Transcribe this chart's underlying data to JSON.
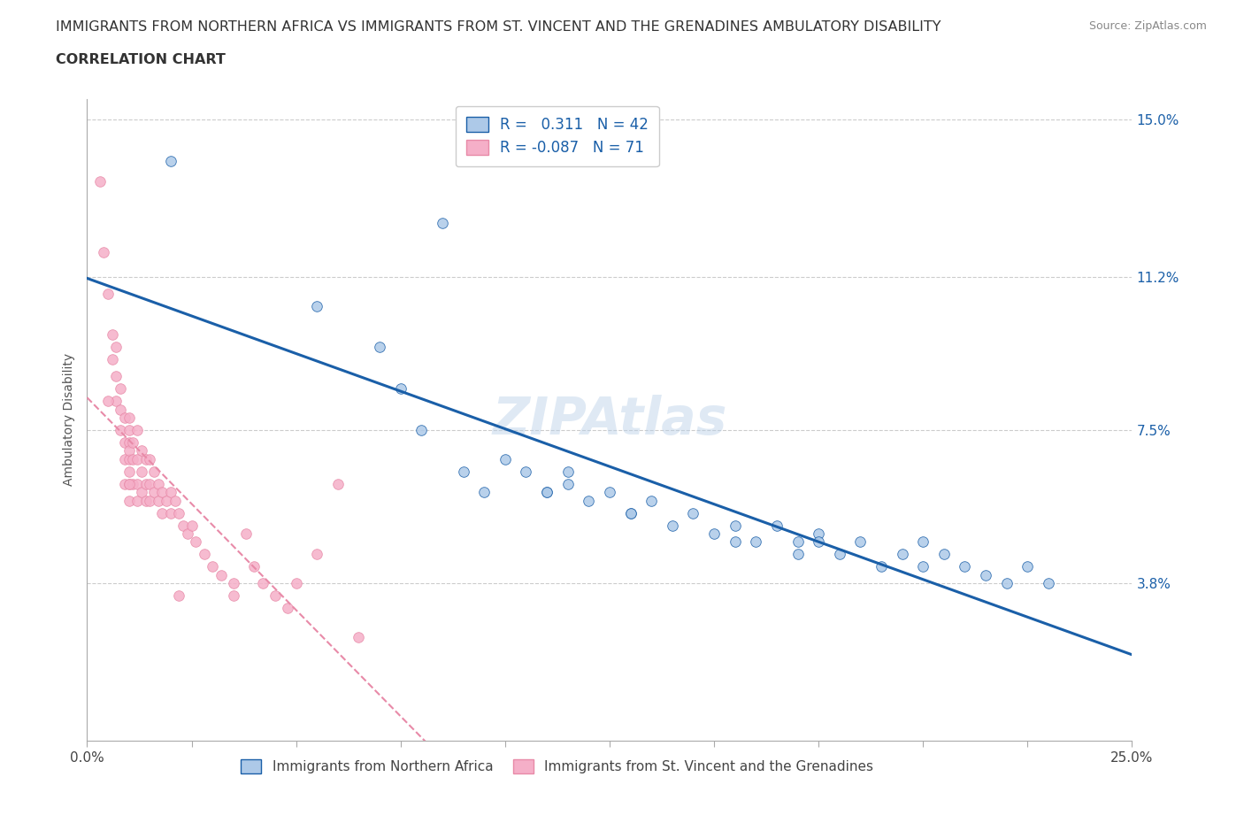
{
  "title_line1": "IMMIGRANTS FROM NORTHERN AFRICA VS IMMIGRANTS FROM ST. VINCENT AND THE GRENADINES AMBULATORY DISABILITY",
  "title_line2": "CORRELATION CHART",
  "source_text": "Source: ZipAtlas.com",
  "watermark": "ZIPAtlas",
  "ylabel": "Ambulatory Disability",
  "xlim": [
    0.0,
    0.25
  ],
  "ylim": [
    0.0,
    0.155
  ],
  "ytick_labels": [
    "3.8%",
    "7.5%",
    "11.2%",
    "15.0%"
  ],
  "ytick_values": [
    0.038,
    0.075,
    0.112,
    0.15
  ],
  "blue_R": 0.311,
  "blue_N": 42,
  "pink_R": -0.087,
  "pink_N": 71,
  "blue_color": "#adc9e8",
  "pink_color": "#f5afc8",
  "blue_line_color": "#1a5fa8",
  "pink_line_color": "#e88aa8",
  "legend_label_blue": "Immigrants from Northern Africa",
  "legend_label_pink": "Immigrants from St. Vincent and the Grenadines",
  "blue_scatter_x": [
    0.02,
    0.055,
    0.07,
    0.075,
    0.08,
    0.09,
    0.095,
    0.1,
    0.105,
    0.11,
    0.115,
    0.115,
    0.12,
    0.125,
    0.13,
    0.135,
    0.14,
    0.145,
    0.15,
    0.155,
    0.16,
    0.165,
    0.17,
    0.17,
    0.175,
    0.18,
    0.185,
    0.19,
    0.195,
    0.2,
    0.205,
    0.21,
    0.215,
    0.22,
    0.225,
    0.23,
    0.2,
    0.175,
    0.155,
    0.13,
    0.11,
    0.085
  ],
  "blue_scatter_y": [
    0.14,
    0.105,
    0.095,
    0.085,
    0.075,
    0.065,
    0.06,
    0.068,
    0.065,
    0.06,
    0.065,
    0.062,
    0.058,
    0.06,
    0.055,
    0.058,
    0.052,
    0.055,
    0.05,
    0.052,
    0.048,
    0.052,
    0.045,
    0.048,
    0.05,
    0.045,
    0.048,
    0.042,
    0.045,
    0.048,
    0.045,
    0.042,
    0.04,
    0.038,
    0.042,
    0.038,
    0.042,
    0.048,
    0.048,
    0.055,
    0.06,
    0.125
  ],
  "pink_scatter_x": [
    0.003,
    0.004,
    0.005,
    0.006,
    0.006,
    0.007,
    0.007,
    0.007,
    0.008,
    0.008,
    0.008,
    0.009,
    0.009,
    0.009,
    0.009,
    0.01,
    0.01,
    0.01,
    0.01,
    0.01,
    0.01,
    0.01,
    0.01,
    0.011,
    0.011,
    0.011,
    0.012,
    0.012,
    0.012,
    0.012,
    0.013,
    0.013,
    0.013,
    0.014,
    0.014,
    0.014,
    0.015,
    0.015,
    0.015,
    0.016,
    0.016,
    0.017,
    0.017,
    0.018,
    0.018,
    0.019,
    0.02,
    0.02,
    0.021,
    0.022,
    0.023,
    0.024,
    0.025,
    0.026,
    0.028,
    0.03,
    0.032,
    0.035,
    0.038,
    0.04,
    0.042,
    0.045,
    0.048,
    0.05,
    0.055,
    0.06,
    0.065,
    0.01,
    0.022,
    0.035,
    0.005
  ],
  "pink_scatter_y": [
    0.135,
    0.118,
    0.108,
    0.098,
    0.092,
    0.088,
    0.082,
    0.095,
    0.085,
    0.08,
    0.075,
    0.078,
    0.072,
    0.068,
    0.062,
    0.078,
    0.072,
    0.068,
    0.065,
    0.062,
    0.058,
    0.075,
    0.07,
    0.072,
    0.068,
    0.062,
    0.075,
    0.068,
    0.062,
    0.058,
    0.07,
    0.065,
    0.06,
    0.068,
    0.062,
    0.058,
    0.068,
    0.062,
    0.058,
    0.065,
    0.06,
    0.062,
    0.058,
    0.06,
    0.055,
    0.058,
    0.06,
    0.055,
    0.058,
    0.055,
    0.052,
    0.05,
    0.052,
    0.048,
    0.045,
    0.042,
    0.04,
    0.038,
    0.05,
    0.042,
    0.038,
    0.035,
    0.032,
    0.038,
    0.045,
    0.062,
    0.025,
    0.062,
    0.035,
    0.035,
    0.082
  ]
}
